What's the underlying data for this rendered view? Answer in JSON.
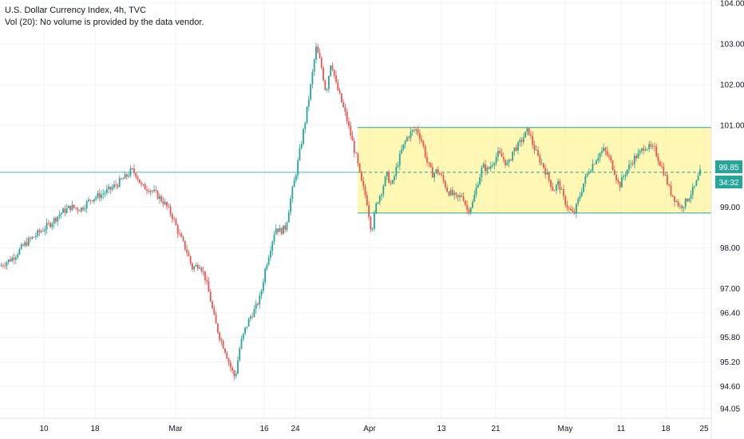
{
  "legend": {
    "title": "U.S. Dollar Currency Index, 4h, TVC",
    "volume_note": "Vol (20): No volume is provided by the data vendor."
  },
  "colors": {
    "up": "#26a69a",
    "down": "#ef5350",
    "range_fill": "#fff176",
    "range_border": "#26a69a",
    "price_line": "#26a69a",
    "grid": "#f0f3fa"
  },
  "chart_data": {
    "type": "candlestick",
    "y_ticks": [
      "104.00",
      "103.00",
      "102.00",
      "101.00",
      "99.00",
      "98.00",
      "97.00",
      "96.40",
      "95.80",
      "95.20",
      "94.60",
      "94.05"
    ],
    "x_ticks": [
      "10",
      "18",
      "Mar",
      "16",
      "24",
      "Apr",
      "13",
      "21",
      "May",
      "11",
      "18",
      "25"
    ],
    "ylim": [
      93.9,
      104.2
    ],
    "price_label": "99.85",
    "countdown_label": "34:32",
    "current_price": 99.85,
    "range_box": {
      "top": 100.95,
      "bottom": 98.85
    },
    "path_points": [
      [
        0,
        97.55
      ],
      [
        5,
        97.75
      ],
      [
        10,
        98.1
      ],
      [
        15,
        98.35
      ],
      [
        20,
        98.6
      ],
      [
        24,
        98.85
      ],
      [
        28,
        99.0
      ],
      [
        32,
        98.95
      ],
      [
        36,
        99.2
      ],
      [
        40,
        99.3
      ],
      [
        44,
        99.45
      ],
      [
        47,
        99.6
      ],
      [
        50,
        99.75
      ],
      [
        52,
        99.9
      ],
      [
        54,
        99.8
      ],
      [
        56,
        99.5
      ],
      [
        59,
        99.45
      ],
      [
        62,
        99.3
      ],
      [
        65,
        99.1
      ],
      [
        68,
        98.8
      ],
      [
        71,
        98.3
      ],
      [
        74,
        97.9
      ],
      [
        76,
        97.5
      ],
      [
        79,
        97.6
      ],
      [
        81,
        97.3
      ],
      [
        83,
        96.8
      ],
      [
        85,
        96.2
      ],
      [
        87,
        95.8
      ],
      [
        89,
        95.5
      ],
      [
        91,
        95.1
      ],
      [
        93,
        94.8
      ],
      [
        95,
        95.6
      ],
      [
        97,
        96.0
      ],
      [
        99,
        96.3
      ],
      [
        101,
        96.5
      ],
      [
        103,
        96.8
      ],
      [
        105,
        97.5
      ],
      [
        107,
        98.0
      ],
      [
        109,
        98.5
      ],
      [
        111,
        98.4
      ],
      [
        113,
        98.5
      ],
      [
        115,
        99.2
      ],
      [
        117,
        99.8
      ],
      [
        119,
        100.5
      ],
      [
        121,
        101.2
      ],
      [
        123,
        102.0
      ],
      [
        125,
        102.9
      ],
      [
        127,
        102.5
      ],
      [
        129,
        101.8
      ],
      [
        131,
        102.6
      ],
      [
        133,
        102.0
      ],
      [
        135,
        101.6
      ],
      [
        137,
        101.2
      ],
      [
        139,
        100.7
      ],
      [
        141,
        100.2
      ],
      [
        143,
        99.6
      ],
      [
        145,
        99.2
      ],
      [
        147,
        98.4
      ],
      [
        149,
        99.1
      ],
      [
        151,
        99.4
      ],
      [
        153,
        99.8
      ],
      [
        155,
        99.5
      ],
      [
        157,
        100.0
      ],
      [
        159,
        100.4
      ],
      [
        161,
        100.7
      ],
      [
        163,
        100.85
      ],
      [
        165,
        100.9
      ],
      [
        167,
        100.6
      ],
      [
        169,
        100.1
      ],
      [
        171,
        99.8
      ],
      [
        173,
        99.9
      ],
      [
        175,
        99.7
      ],
      [
        177,
        99.4
      ],
      [
        179,
        99.3
      ],
      [
        181,
        99.2
      ],
      [
        183,
        99.3
      ],
      [
        185,
        98.9
      ],
      [
        187,
        99.1
      ],
      [
        189,
        99.6
      ],
      [
        191,
        100.0
      ],
      [
        193,
        99.9
      ],
      [
        195,
        100.1
      ],
      [
        197,
        100.3
      ],
      [
        199,
        100.2
      ],
      [
        201,
        100.0
      ],
      [
        203,
        100.4
      ],
      [
        205,
        100.5
      ],
      [
        207,
        100.7
      ],
      [
        209,
        100.9
      ],
      [
        211,
        100.5
      ],
      [
        213,
        100.2
      ],
      [
        215,
        100.0
      ],
      [
        217,
        99.7
      ],
      [
        219,
        99.4
      ],
      [
        221,
        99.6
      ],
      [
        223,
        99.2
      ],
      [
        225,
        98.95
      ],
      [
        227,
        98.8
      ],
      [
        229,
        99.2
      ],
      [
        231,
        99.6
      ],
      [
        233,
        99.9
      ],
      [
        235,
        100.1
      ],
      [
        237,
        100.3
      ],
      [
        239,
        100.4
      ],
      [
        241,
        100.2
      ],
      [
        243,
        99.9
      ],
      [
        245,
        99.5
      ],
      [
        247,
        99.8
      ],
      [
        249,
        100.0
      ],
      [
        251,
        100.2
      ],
      [
        253,
        100.3
      ],
      [
        255,
        100.5
      ],
      [
        257,
        100.45
      ],
      [
        259,
        100.4
      ],
      [
        261,
        100.1
      ],
      [
        263,
        99.8
      ],
      [
        265,
        99.4
      ],
      [
        267,
        99.2
      ],
      [
        269,
        99.0
      ],
      [
        271,
        99.1
      ],
      [
        273,
        99.3
      ],
      [
        275,
        99.5
      ],
      [
        277,
        99.85
      ]
    ]
  }
}
